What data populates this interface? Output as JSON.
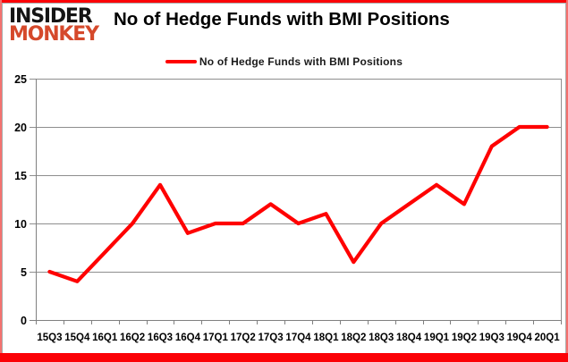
{
  "logo": {
    "line1": "INSIDER",
    "line2": "MONKEY"
  },
  "title": "No of Hedge Funds with BMI Positions",
  "legend": {
    "label": "No of Hedge Funds with BMI Positions",
    "swatch_color": "#ff0000"
  },
  "chart_data": {
    "type": "line",
    "title": "No of Hedge Funds with BMI Positions",
    "categories": [
      "15Q3",
      "15Q4",
      "16Q1",
      "16Q2",
      "16Q3",
      "16Q4",
      "17Q1",
      "17Q2",
      "17Q3",
      "17Q4",
      "18Q1",
      "18Q2",
      "18Q3",
      "18Q4",
      "19Q1",
      "19Q2",
      "19Q3",
      "19Q4",
      "20Q1"
    ],
    "series": [
      {
        "name": "No of Hedge Funds with BMI Positions",
        "values": [
          5,
          4,
          7,
          10,
          14,
          9,
          10,
          10,
          12,
          10,
          11,
          6,
          10,
          12,
          14,
          12,
          18,
          20,
          20
        ]
      }
    ],
    "xlabel": "",
    "ylabel": "",
    "ylim": [
      0,
      25
    ],
    "ytick_step": 5,
    "yticks": [
      0,
      5,
      10,
      15,
      20,
      25
    ],
    "grid": true,
    "legend_position": "top-center",
    "line_color": "#ff0000",
    "line_width": 4.2,
    "grid_color": "#8e8e8e",
    "axis_color": "#808080",
    "tick_label_color": "#000000"
  },
  "colors": {
    "frame_red": "#fb0207",
    "side_border_red": "#f4716e",
    "logo_orange": "#d5492b",
    "inner_frame_gray": "#ababab"
  }
}
